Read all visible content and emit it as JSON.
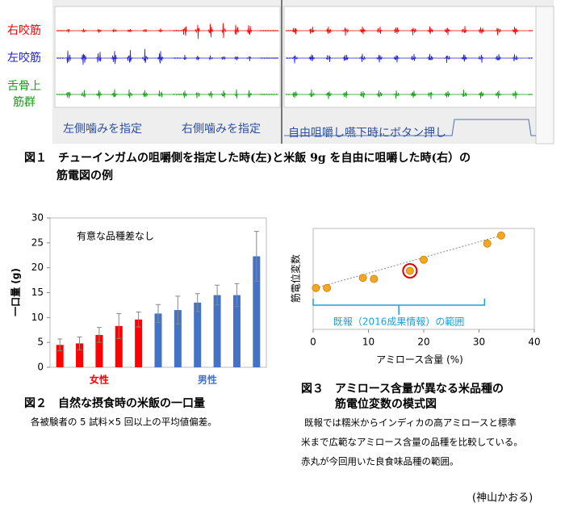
{
  "figure1": {
    "labels": [
      "右咬筋",
      "左咬筋",
      "舌骨上",
      "筋群"
    ],
    "left_note": "左側噛みを指定",
    "middle_note": "右側噛みを指定",
    "right_note": "自由咀嚼し嚥下時にボタン押し",
    "caption": [
      "図１　チューインガムの咀嚼側を指定した時(左)と米飯 9g を自由に咀嚼した時(右）の",
      "筋電図の例"
    ]
  },
  "figure2": {
    "caption": "図２　自然な摂食時の米飯の一口量",
    "note": "各被験者の 5 試料×5 回以上の平均値偏差。"
  },
  "figure3": {
    "caption": [
      "図３　アミロース含量が異なる米品種の",
      "筋電位変数の模式図"
    ],
    "note": [
      "既報では糯米からインディカの高アミロースと標準",
      "米まで広範なアミロース含量の品種を比較している。",
      "赤丸が今回用いた良食味品種の範囲。"
    ]
  },
  "author": "(神山かおる)",
  "chart_data": [
    {
      "type": "bar",
      "ylabel": "一口量 (g)",
      "annotation": "有意な品種差なし",
      "categories": [
        null,
        null,
        null,
        null,
        null,
        null,
        null,
        null,
        null,
        null,
        null
      ],
      "values": [
        4.5,
        4.8,
        6.5,
        8.3,
        9.6,
        10.8,
        11.5,
        13.0,
        14.5,
        14.5,
        22.3
      ],
      "errors": [
        1.2,
        1.3,
        1.5,
        2.5,
        1.5,
        1.8,
        2.8,
        1.8,
        2.0,
        2.3,
        5.0
      ],
      "colors": [
        "#ff0000",
        "#ff0000",
        "#ff0000",
        "#ff0000",
        "#ff0000",
        "#4472c4",
        "#4472c4",
        "#4472c4",
        "#4472c4",
        "#4472c4",
        "#4472c4"
      ],
      "groups": [
        {
          "label": "女性",
          "color": "#ff0000"
        },
        {
          "label": "男性",
          "color": "#4472c4"
        }
      ],
      "ylim": [
        0,
        30
      ],
      "yticks": [
        0,
        5,
        10,
        15,
        20,
        25,
        30
      ]
    },
    {
      "type": "scatter",
      "xlabel": "アミロース含量 (%)",
      "ylabel": "筋電位変数",
      "x": [
        0.5,
        2.5,
        9,
        11,
        17.5,
        20,
        31.5,
        34
      ],
      "y": [
        4.1,
        4.1,
        5.1,
        5.0,
        5.8,
        6.9,
        8.5,
        9.3
      ],
      "color": "#f5a623",
      "highlight_index": 4,
      "highlight_color": "#e00000",
      "trendline": true,
      "range": {
        "label": "既報（2016成果情報）の範囲",
        "x": [
          0,
          31
        ],
        "color": "#1fa0d8"
      },
      "xlim": [
        0,
        40
      ],
      "xticks": [
        0,
        10,
        20,
        30,
        40
      ],
      "ylim": [
        0,
        10
      ]
    }
  ]
}
